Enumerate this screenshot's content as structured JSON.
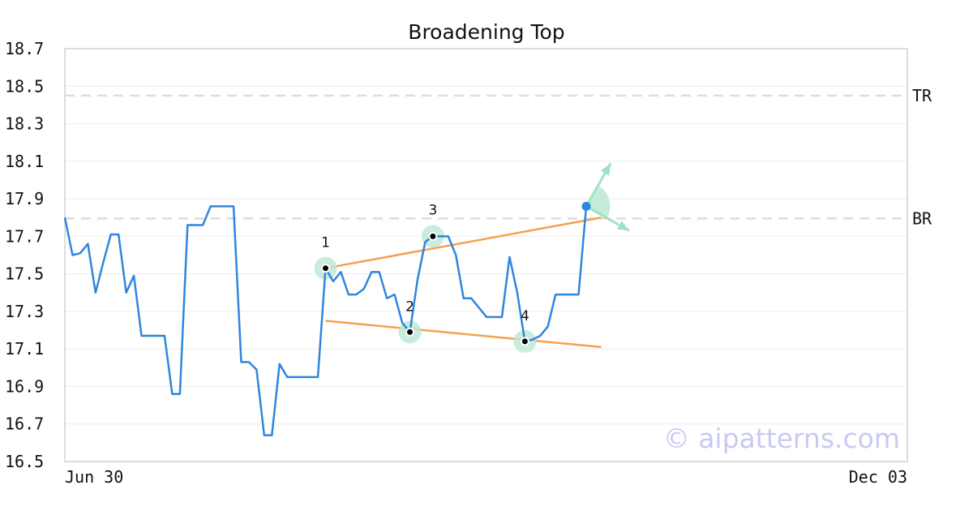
{
  "chart_data": {
    "type": "line",
    "title": "Broadening Top",
    "xlabel": "",
    "ylabel": "",
    "ylim": [
      16.5,
      18.7
    ],
    "yticks": [
      "18.7",
      "18.5",
      "18.3",
      "18.1",
      "17.9",
      "17.7",
      "17.5",
      "17.3",
      "17.1",
      "16.9",
      "16.7",
      "16.5"
    ],
    "x_tick_labels": [
      "Jun 30",
      "Dec 03"
    ],
    "grid": true,
    "watermark": "© aipatterns.com",
    "colors": {
      "price": "#2e86de",
      "trendline": "#f5a04f",
      "highlight": "#bfe9d6",
      "arrow": "#9ee3c4",
      "reference": "#dddddd"
    },
    "series": [
      {
        "values": [
          17.8,
          17.6,
          17.61,
          17.66,
          17.4,
          17.56,
          17.71,
          17.71,
          17.4,
          17.49,
          17.17,
          17.17,
          17.17,
          17.17,
          16.86,
          16.86,
          17.76,
          17.76,
          17.76,
          17.86,
          17.86,
          17.86,
          17.86,
          17.03,
          17.03,
          16.99,
          16.64,
          16.64,
          17.02,
          16.95,
          16.95,
          16.95,
          16.95,
          16.95,
          17.53,
          17.46,
          17.51,
          17.39,
          17.39,
          17.42,
          17.51,
          17.51,
          17.37,
          17.39,
          17.24,
          17.19,
          17.47,
          17.67,
          17.7,
          17.7,
          17.7,
          17.6,
          17.37,
          17.37,
          17.32,
          17.27,
          17.27,
          17.27,
          17.59,
          17.4,
          17.14,
          17.15,
          17.17,
          17.22,
          17.39,
          17.39,
          17.39,
          17.39,
          17.86
        ]
      }
    ],
    "pivots": [
      {
        "label": "1",
        "index": 34,
        "value": 17.53
      },
      {
        "label": "2",
        "index": 45,
        "value": 17.19
      },
      {
        "label": "3",
        "index": 48,
        "value": 17.7
      },
      {
        "label": "4",
        "index": 60,
        "value": 17.14
      }
    ],
    "trendlines": [
      {
        "start_index": 34,
        "start_value": 17.53,
        "end_index": 69,
        "end_value": 17.8
      },
      {
        "start_index": 34,
        "start_value": 17.25,
        "end_index": 69,
        "end_value": 17.11
      }
    ],
    "breakout": {
      "index": 68,
      "value": 17.86
    },
    "reference_lines": [
      {
        "label": "TR",
        "value": 18.45
      },
      {
        "label": "BR",
        "value": 17.795
      }
    ]
  }
}
